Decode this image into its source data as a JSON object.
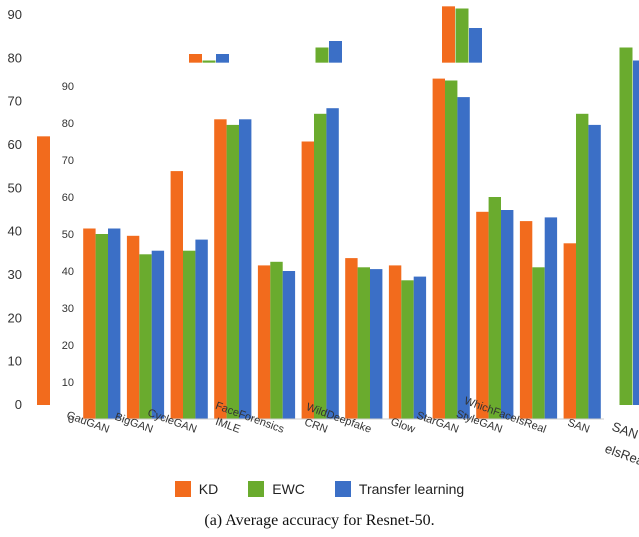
{
  "chart_data": {
    "type": "bar",
    "caption": "(a) Average accuracy for Resnet-50.",
    "categories": [
      "GauGAN",
      "BigGAN",
      "CycleGAN",
      "IMLE",
      "FaceForensics",
      "CRN",
      "WildDeepfake",
      "Glow",
      "StarGAN",
      "StyleGAN",
      "WhichFaceIsReal",
      "SAN"
    ],
    "series": [
      {
        "name": "KD",
        "color": "#f26b1d",
        "values": [
          51.5,
          49.5,
          67,
          81,
          41.5,
          75,
          43.5,
          41.5,
          92,
          56,
          53.5,
          47.5
        ]
      },
      {
        "name": "EWC",
        "color": "#6aab2e",
        "values": [
          50,
          44.5,
          45.5,
          79.5,
          42.5,
          82.5,
          41,
          37.5,
          91.5,
          60,
          41,
          82.5
        ]
      },
      {
        "name": "Transfer learning",
        "color": "#3b6fc6",
        "values": [
          51.5,
          45.5,
          48.5,
          81,
          40,
          84,
          40.5,
          38.5,
          87,
          56.5,
          54.5,
          79.5
        ]
      }
    ],
    "ylim": [
      0,
      90
    ],
    "y_ticks": [
      0,
      10,
      20,
      30,
      40,
      50,
      60,
      70,
      80,
      90
    ],
    "inner_y_ticks": [
      0,
      10,
      20,
      30,
      40,
      50,
      60,
      70,
      80,
      90
    ],
    "outer_axis": {
      "y_ticks": [
        0,
        10,
        20,
        30,
        40,
        50,
        60,
        70,
        80,
        90
      ],
      "partial_left_bar": {
        "series": "KD",
        "value": 62
      },
      "fragments": [
        {
          "category": "IMLE",
          "values": [
            81,
            79.5,
            81
          ]
        },
        {
          "category": "CRN",
          "values": [
            null,
            82.5,
            84
          ]
        },
        {
          "category": "StarGAN",
          "values": [
            92,
            91.5,
            87
          ]
        },
        {
          "category": "SAN",
          "values": [
            null,
            82.5,
            79.5
          ]
        }
      ],
      "right_labels": [
        "SAN",
        "elsReal"
      ]
    },
    "legend_position": "bottom",
    "grid": false
  }
}
